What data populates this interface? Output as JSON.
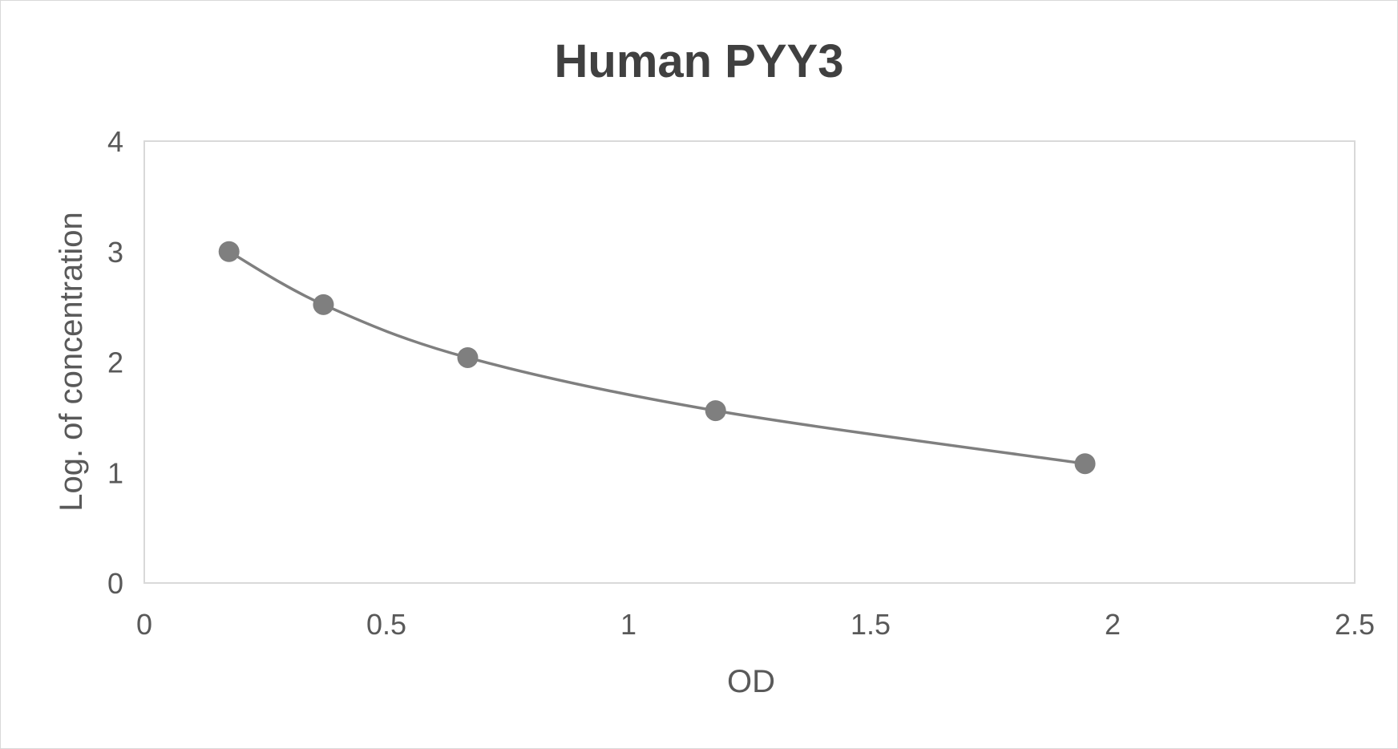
{
  "chart_data": {
    "type": "scatter",
    "title": "Human PYY3",
    "xlabel": "OD",
    "ylabel": "Log. of concentration",
    "xlim": [
      0,
      2.5
    ],
    "ylim": [
      0,
      4
    ],
    "xticks": [
      "0",
      "0.5",
      "1",
      "1.5",
      "2",
      "2.5"
    ],
    "yticks": [
      "0",
      "1",
      "2",
      "3",
      "4"
    ],
    "grid": false,
    "smooth_line": true,
    "colors": {
      "series": "#7f7f7f",
      "marker": "#7f7f7f",
      "text": "#595959",
      "title": "#404040",
      "border": "#d9d9d9"
    },
    "series": [
      {
        "x": [
          0.175,
          0.37,
          0.668,
          1.18,
          1.943
        ],
        "y": [
          3.0,
          2.52,
          2.04,
          1.56,
          1.08
        ]
      }
    ]
  }
}
